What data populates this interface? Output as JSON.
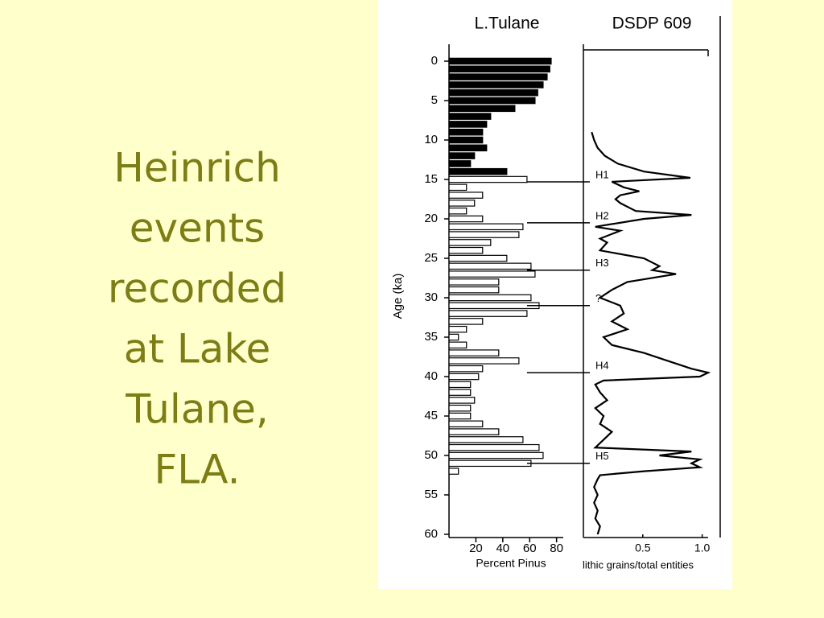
{
  "slide_title": [
    "Heinrich",
    "events",
    "recorded",
    "at Lake",
    "Tulane,",
    "FLA."
  ],
  "chart_data": [
    {
      "type": "bar",
      "orientation": "horizontal",
      "title": "L.Tulane",
      "y_label": "Age (ka)",
      "x_label": "Percent Pinus",
      "color": "#000000",
      "y": [
        0,
        1,
        2,
        3,
        4,
        5,
        6,
        7,
        8,
        9,
        10,
        11,
        12,
        13,
        14,
        15,
        16,
        17,
        18,
        19,
        20,
        21,
        22,
        23,
        24,
        25,
        26,
        27,
        28,
        29,
        30,
        31,
        32,
        33,
        34,
        35,
        36,
        37,
        38,
        39,
        40,
        41,
        42,
        43,
        44,
        45,
        46,
        47,
        48,
        49,
        50,
        51,
        52
      ],
      "values": [
        76,
        75,
        73,
        70,
        66,
        64,
        49,
        31,
        28,
        25,
        25,
        28,
        19,
        16,
        43,
        58,
        13,
        25,
        19,
        13,
        25,
        55,
        52,
        31,
        25,
        43,
        61,
        64,
        37,
        37,
        61,
        67,
        58,
        25,
        13,
        7,
        13,
        37,
        52,
        25,
        22,
        16,
        16,
        19,
        16,
        16,
        25,
        37,
        55,
        67,
        70,
        61,
        7
      ],
      "ylim": [
        0,
        60
      ],
      "yticks": [
        0,
        5,
        10,
        15,
        20,
        25,
        30,
        35,
        40,
        45,
        50,
        55,
        60
      ],
      "xlim": [
        0,
        85
      ],
      "xticks": [
        20,
        40,
        60,
        80
      ]
    },
    {
      "type": "line",
      "title": "DSDP 609",
      "x_label": "lithic grains/total entities",
      "color": "#000000",
      "y": [
        9,
        10,
        11,
        12,
        13,
        14,
        14.8,
        15.3,
        16,
        16.5,
        17,
        17.5,
        18,
        19,
        19.5,
        20,
        21,
        21.5,
        22.5,
        23,
        24,
        25,
        26,
        26.5,
        27,
        28,
        29,
        30,
        31,
        32,
        33,
        34,
        35,
        36,
        37,
        38,
        39,
        39.5,
        40,
        40.5,
        41,
        42,
        43,
        44,
        45,
        46,
        47,
        48,
        49,
        49.5,
        50,
        50.5,
        51,
        51.5,
        52,
        52.5,
        53,
        54,
        55,
        56,
        57,
        58,
        59,
        60
      ],
      "values": [
        0.07,
        0.09,
        0.12,
        0.18,
        0.29,
        0.51,
        0.9,
        0.24,
        0.34,
        0.47,
        0.31,
        0.27,
        0.31,
        0.44,
        0.91,
        0.51,
        0.1,
        0.31,
        0.14,
        0.2,
        0.14,
        0.51,
        0.64,
        0.58,
        0.78,
        0.37,
        0.24,
        0.14,
        0.31,
        0.34,
        0.24,
        0.37,
        0.17,
        0.24,
        0.51,
        0.71,
        0.91,
        1.05,
        0.98,
        0.17,
        0.1,
        0.14,
        0.2,
        0.1,
        0.17,
        0.14,
        0.24,
        0.17,
        0.1,
        0.91,
        0.64,
        0.98,
        0.91,
        0.98,
        0.51,
        0.14,
        0.12,
        0.09,
        0.12,
        0.09,
        0.12,
        0.1,
        0.14,
        0.12
      ],
      "ylim": [
        0,
        60
      ],
      "xlim": [
        0,
        1.05
      ],
      "xticks": [
        0.5,
        {
          "value": 1,
          "label": "1.0"
        }
      ],
      "annotations": [
        {
          "text": "H1",
          "y": 15.3
        },
        {
          "text": "H2",
          "y": 20.5
        },
        {
          "text": "H3",
          "y": 26.5
        },
        {
          "text": "?",
          "y": 31
        },
        {
          "text": "H4",
          "y": 39.5
        },
        {
          "text": "H5",
          "y": 51
        }
      ]
    }
  ]
}
